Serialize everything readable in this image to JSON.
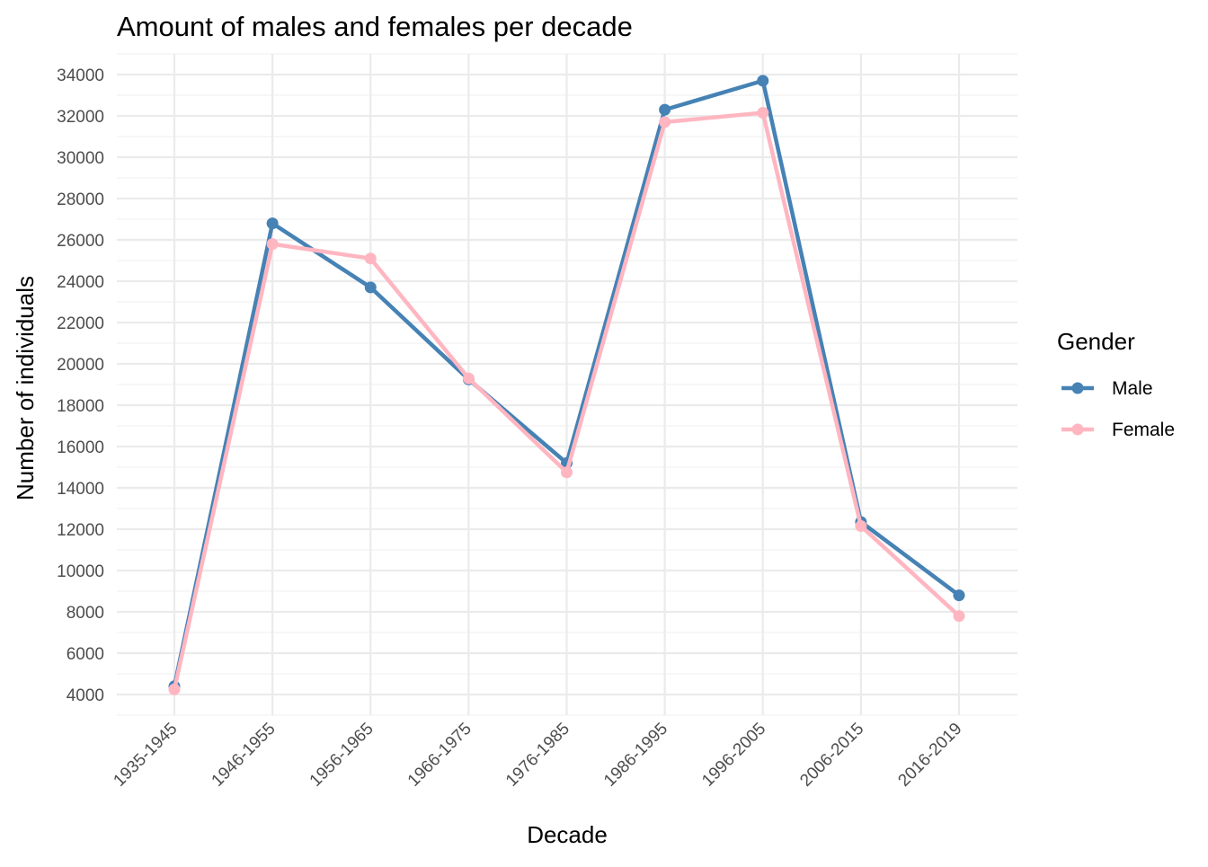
{
  "chart_data": {
    "type": "line",
    "title": "Amount of males and females per decade",
    "xlabel": "Decade",
    "ylabel": "Number of individuals",
    "categories": [
      "1935-1945",
      "1946-1955",
      "1956-1965",
      "1966-1975",
      "1976-1985",
      "1986-1995",
      "1996-2005",
      "2006-2015",
      "2016-2019"
    ],
    "ylim": [
      3000,
      35000
    ],
    "yticks": [
      4000,
      6000,
      8000,
      10000,
      12000,
      14000,
      16000,
      18000,
      20000,
      22000,
      24000,
      26000,
      28000,
      30000,
      32000,
      34000
    ],
    "grid": true,
    "legend": {
      "title": "Gender",
      "placement": "right"
    },
    "series": [
      {
        "name": "Male",
        "color": "#4682B4",
        "values": [
          4400,
          26800,
          23700,
          19250,
          15200,
          32300,
          33700,
          12350,
          8800
        ]
      },
      {
        "name": "Female",
        "color": "#FFB6C1",
        "values": [
          4250,
          25800,
          25100,
          19300,
          14750,
          31700,
          32150,
          12150,
          7800
        ]
      }
    ]
  }
}
